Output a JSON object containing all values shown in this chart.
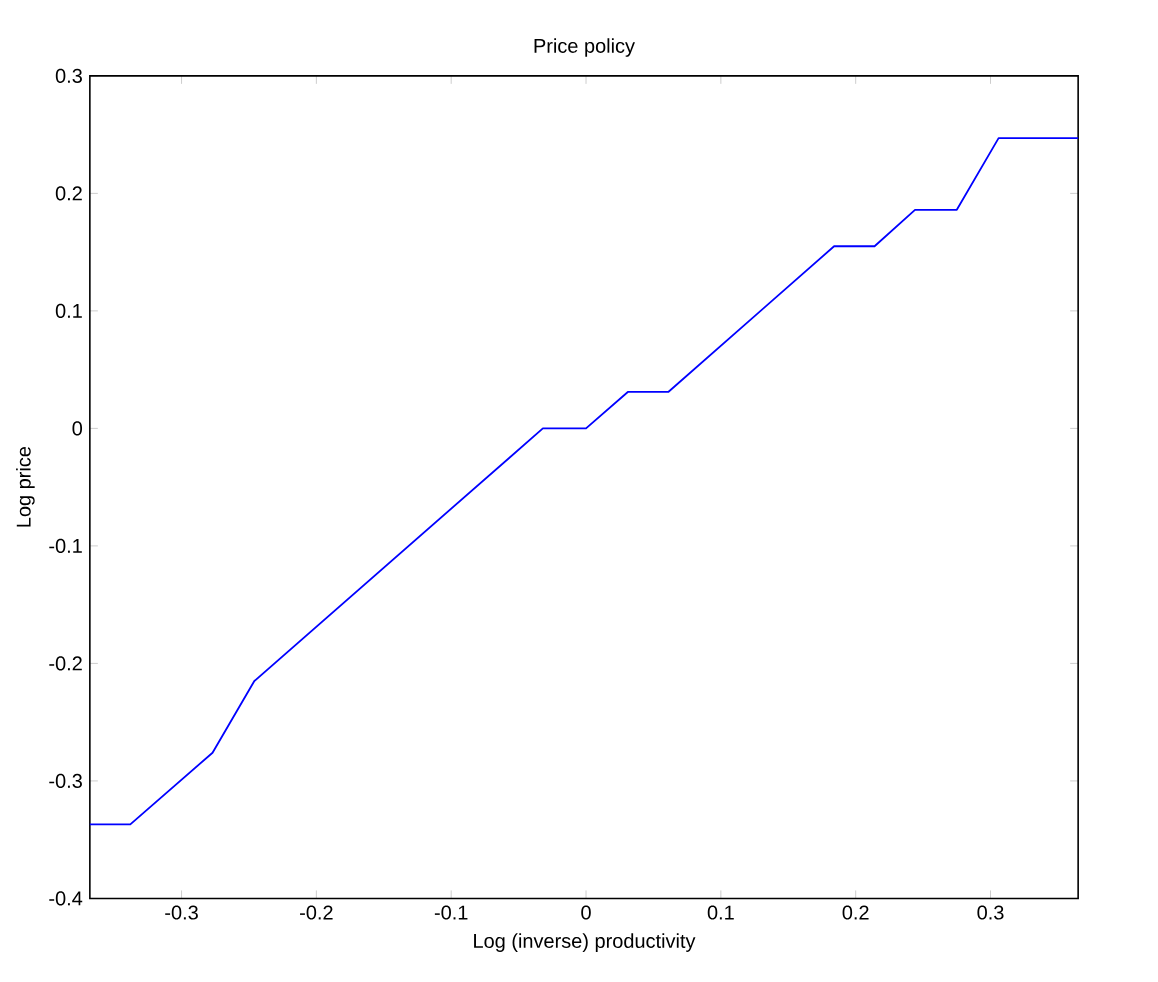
{
  "chart_data": {
    "type": "line",
    "title": "Price policy",
    "xlabel": "Log (inverse) productivity",
    "ylabel": "Log price",
    "xlim": [
      -0.368,
      0.365
    ],
    "ylim": [
      -0.4,
      0.3
    ],
    "xticks": [
      -0.3,
      -0.2,
      -0.1,
      0,
      0.1,
      0.2,
      0.3
    ],
    "yticks": [
      -0.4,
      -0.3,
      -0.2,
      -0.1,
      0,
      0.1,
      0.2,
      0.3
    ],
    "grid": false,
    "series": [
      {
        "color": "#0000ff",
        "x": [
          -0.368,
          -0.338,
          -0.277,
          -0.246,
          -0.032,
          0,
          0.031,
          0.061,
          0.184,
          0.214,
          0.244,
          0.275,
          0.306,
          0.365
        ],
        "values": [
          -0.337,
          -0.337,
          -0.276,
          -0.215,
          0,
          0,
          0.031,
          0.031,
          0.155,
          0.155,
          0.186,
          0.186,
          0.247,
          0.247
        ]
      }
    ]
  }
}
